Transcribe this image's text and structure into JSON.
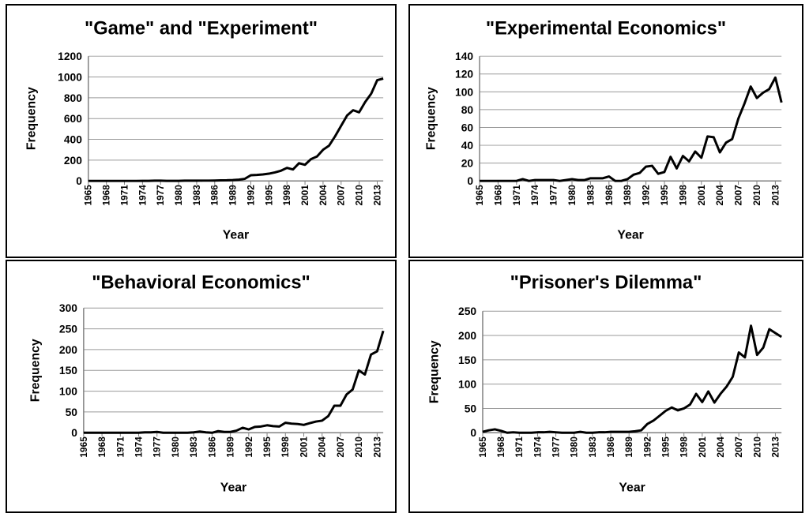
{
  "chart_data": [
    {
      "type": "line",
      "title": "\"Game\" and \"Experiment\"",
      "xlabel": "Year",
      "ylabel": "Frequency",
      "ylim": [
        0,
        1200
      ],
      "yticks": [
        0,
        200,
        400,
        600,
        800,
        1000,
        1200
      ],
      "xtick_labels": [
        "1965",
        "1968",
        "1971",
        "1974",
        "1977",
        "1980",
        "1983",
        "1986",
        "1989",
        "1992",
        "1995",
        "1998",
        "2001",
        "2004",
        "2007",
        "2010",
        "2013"
      ],
      "grid": true,
      "series": [
        {
          "name": "\"Game\" and \"Experiment\"",
          "x": [
            1965,
            1966,
            1967,
            1968,
            1969,
            1970,
            1971,
            1972,
            1973,
            1974,
            1975,
            1976,
            1977,
            1978,
            1979,
            1980,
            1981,
            1982,
            1983,
            1984,
            1985,
            1986,
            1987,
            1988,
            1989,
            1990,
            1991,
            1992,
            1993,
            1994,
            1995,
            1996,
            1997,
            1998,
            1999,
            2000,
            2001,
            2002,
            2003,
            2004,
            2005,
            2006,
            2007,
            2008,
            2009,
            2010,
            2011,
            2012,
            2013,
            2014
          ],
          "values": [
            0,
            0,
            0,
            0,
            0,
            0,
            0,
            0,
            0,
            1,
            1,
            2,
            2,
            1,
            1,
            1,
            2,
            2,
            2,
            3,
            3,
            4,
            5,
            6,
            8,
            12,
            20,
            55,
            58,
            62,
            70,
            82,
            98,
            125,
            110,
            170,
            155,
            210,
            235,
            300,
            340,
            430,
            530,
            630,
            680,
            660,
            760,
            840,
            970,
            985
          ]
        }
      ]
    },
    {
      "type": "line",
      "title": "\"Experimental Economics\"",
      "xlabel": "Year",
      "ylabel": "Frequency",
      "ylim": [
        0,
        140
      ],
      "yticks": [
        0,
        20,
        40,
        60,
        80,
        100,
        120,
        140
      ],
      "xtick_labels": [
        "1965",
        "1968",
        "1971",
        "1974",
        "1977",
        "1980",
        "1983",
        "1986",
        "1989",
        "1992",
        "1995",
        "1998",
        "2001",
        "2004",
        "2007",
        "2010",
        "2013"
      ],
      "grid": true,
      "series": [
        {
          "name": "\"Experimental Economics\"",
          "x": [
            1965,
            1966,
            1967,
            1968,
            1969,
            1970,
            1971,
            1972,
            1973,
            1974,
            1975,
            1976,
            1977,
            1978,
            1979,
            1980,
            1981,
            1982,
            1983,
            1984,
            1985,
            1986,
            1987,
            1988,
            1989,
            1990,
            1991,
            1992,
            1993,
            1994,
            1995,
            1996,
            1997,
            1998,
            1999,
            2000,
            2001,
            2002,
            2003,
            2004,
            2005,
            2006,
            2007,
            2008,
            2009,
            2010,
            2011,
            2012,
            2013,
            2014
          ],
          "values": [
            0,
            0,
            0,
            0,
            0,
            0,
            0,
            2,
            0,
            1,
            1,
            1,
            1,
            0,
            1,
            2,
            1,
            1,
            3,
            3,
            3,
            5,
            0,
            0,
            2,
            7,
            9,
            16,
            17,
            8,
            10,
            27,
            14,
            28,
            22,
            33,
            26,
            50,
            49,
            32,
            43,
            47,
            70,
            87,
            106,
            93,
            99,
            103,
            116,
            88
          ]
        }
      ]
    },
    {
      "type": "line",
      "title": "\"Behavioral Economics\"",
      "xlabel": "Year",
      "ylabel": "Frequency",
      "ylim": [
        0,
        300
      ],
      "yticks": [
        0,
        50,
        100,
        150,
        200,
        250,
        300
      ],
      "xtick_labels": [
        "1965",
        "1968",
        "1971",
        "1974",
        "1977",
        "1980",
        "1983",
        "1986",
        "1989",
        "1992",
        "1995",
        "1998",
        "2001",
        "2004",
        "2007",
        "2010",
        "2013"
      ],
      "grid": true,
      "series": [
        {
          "name": "\"Behavioral Economics\"",
          "x": [
            1965,
            1966,
            1967,
            1968,
            1969,
            1970,
            1971,
            1972,
            1973,
            1974,
            1975,
            1976,
            1977,
            1978,
            1979,
            1980,
            1981,
            1982,
            1983,
            1984,
            1985,
            1986,
            1987,
            1988,
            1989,
            1990,
            1991,
            1992,
            1993,
            1994,
            1995,
            1996,
            1997,
            1998,
            1999,
            2000,
            2001,
            2002,
            2003,
            2004,
            2005,
            2006,
            2007,
            2008,
            2009,
            2010,
            2011,
            2012,
            2013,
            2014
          ],
          "values": [
            0,
            0,
            0,
            0,
            0,
            0,
            0,
            0,
            0,
            0,
            1,
            1,
            2,
            0,
            0,
            0,
            0,
            0,
            1,
            3,
            1,
            0,
            4,
            2,
            2,
            5,
            12,
            8,
            14,
            15,
            18,
            16,
            15,
            24,
            22,
            21,
            19,
            23,
            27,
            29,
            40,
            65,
            65,
            92,
            104,
            150,
            140,
            188,
            196,
            245
          ]
        }
      ]
    },
    {
      "type": "line",
      "title": "\"Prisoner's Dilemma\"",
      "xlabel": "Year",
      "ylabel": "Frequency",
      "ylim": [
        0,
        250
      ],
      "yticks": [
        0,
        50,
        100,
        150,
        200,
        250
      ],
      "xtick_labels": [
        "1965",
        "1968",
        "1971",
        "1974",
        "1977",
        "1980",
        "1983",
        "1986",
        "1989",
        "1992",
        "1995",
        "1998",
        "2001",
        "2004",
        "2007",
        "2010",
        "2013"
      ],
      "grid": true,
      "series": [
        {
          "name": "\"Prisoner's Dilemma\"",
          "x": [
            1965,
            1966,
            1967,
            1968,
            1969,
            1970,
            1971,
            1972,
            1973,
            1974,
            1975,
            1976,
            1977,
            1978,
            1979,
            1980,
            1981,
            1982,
            1983,
            1984,
            1985,
            1986,
            1987,
            1988,
            1989,
            1990,
            1991,
            1992,
            1993,
            1994,
            1995,
            1996,
            1997,
            1998,
            1999,
            2000,
            2001,
            2002,
            2003,
            2004,
            2005,
            2006,
            2007,
            2008,
            2009,
            2010,
            2011,
            2012,
            2013,
            2014
          ],
          "values": [
            2,
            5,
            7,
            4,
            0,
            1,
            0,
            0,
            0,
            1,
            1,
            2,
            1,
            0,
            0,
            0,
            2,
            0,
            0,
            1,
            1,
            2,
            2,
            2,
            2,
            3,
            5,
            18,
            25,
            35,
            45,
            52,
            46,
            50,
            58,
            80,
            63,
            85,
            62,
            80,
            95,
            115,
            165,
            155,
            220,
            160,
            175,
            213,
            205,
            197
          ]
        }
      ]
    }
  ]
}
